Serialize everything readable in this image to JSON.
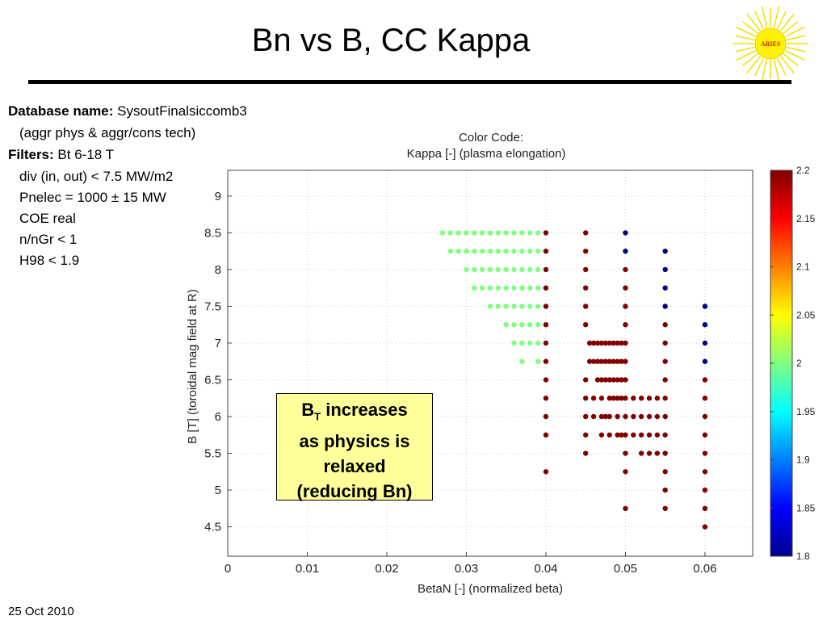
{
  "slide": {
    "title": "Bn vs B, CC Kappa",
    "date": "25 Oct 2010",
    "logo_text": "ARIES"
  },
  "info": {
    "db_label": "Database name:",
    "db_value": "SysoutFinalsiccomb3",
    "db_sub": "(aggr phys & aggr/cons tech)",
    "filters_label": "Filters:",
    "filters_first": "Bt 6-18 T",
    "filters": [
      "div (in, out) < 7.5 MW/m2",
      "Pnelec = 1000 ± 15 MW",
      "COE real",
      "n/nGr < 1",
      "H98 < 1.9"
    ]
  },
  "callout": {
    "line1_main": "B",
    "line1_sub": "T",
    "line1_rest": " increases",
    "line2": "as physics is",
    "line3": "relaxed",
    "line4": "(reducing Bn)"
  },
  "chart_data": {
    "type": "scatter",
    "title_line1": "Color Code:",
    "title_line2": "Kappa [-] (plasma elongation)",
    "xlabel": "BetaN [-] (normalized beta)",
    "ylabel": "B [T] (toroidal mag field at R)",
    "xlim": [
      0,
      0.066
    ],
    "ylim": [
      4.1,
      9.35
    ],
    "xticks": [
      "0",
      "0.01",
      "0.02",
      "0.03",
      "0.04",
      "0.05",
      "0.06"
    ],
    "xtick_values": [
      0,
      0.01,
      0.02,
      0.03,
      0.04,
      0.05,
      0.06
    ],
    "yticks": [
      "4.5",
      "5",
      "5.5",
      "6",
      "6.5",
      "7",
      "7.5",
      "8",
      "8.5",
      "9"
    ],
    "ytick_values": [
      4.5,
      5,
      5.5,
      6,
      6.5,
      7,
      7.5,
      8,
      8.5,
      9
    ],
    "grid": true,
    "colorbar": {
      "range": [
        1.8,
        2.2
      ],
      "ticks": [
        "1.8",
        "1.85",
        "1.9",
        "1.95",
        "2",
        "2.05",
        "2.1",
        "2.15",
        "2.2"
      ],
      "tick_values": [
        1.8,
        1.85,
        1.9,
        1.95,
        2.0,
        2.05,
        2.1,
        2.15,
        2.2
      ],
      "colormap": "jet"
    },
    "groups": [
      {
        "kappa": 2.0,
        "points": [
          [
            0.027,
            8.5
          ],
          [
            0.028,
            8.5
          ],
          [
            0.029,
            8.5
          ],
          [
            0.03,
            8.5
          ],
          [
            0.031,
            8.5
          ],
          [
            0.032,
            8.5
          ],
          [
            0.033,
            8.5
          ],
          [
            0.034,
            8.5
          ],
          [
            0.035,
            8.5
          ],
          [
            0.036,
            8.5
          ],
          [
            0.037,
            8.5
          ],
          [
            0.038,
            8.5
          ],
          [
            0.039,
            8.5
          ],
          [
            0.028,
            8.25
          ],
          [
            0.029,
            8.25
          ],
          [
            0.03,
            8.25
          ],
          [
            0.031,
            8.25
          ],
          [
            0.032,
            8.25
          ],
          [
            0.033,
            8.25
          ],
          [
            0.034,
            8.25
          ],
          [
            0.035,
            8.25
          ],
          [
            0.036,
            8.25
          ],
          [
            0.037,
            8.25
          ],
          [
            0.038,
            8.25
          ],
          [
            0.039,
            8.25
          ],
          [
            0.03,
            8.0
          ],
          [
            0.031,
            8.0
          ],
          [
            0.032,
            8.0
          ],
          [
            0.033,
            8.0
          ],
          [
            0.034,
            8.0
          ],
          [
            0.035,
            8.0
          ],
          [
            0.036,
            8.0
          ],
          [
            0.037,
            8.0
          ],
          [
            0.038,
            8.0
          ],
          [
            0.039,
            8.0
          ],
          [
            0.031,
            7.75
          ],
          [
            0.032,
            7.75
          ],
          [
            0.033,
            7.75
          ],
          [
            0.034,
            7.75
          ],
          [
            0.035,
            7.75
          ],
          [
            0.036,
            7.75
          ],
          [
            0.037,
            7.75
          ],
          [
            0.038,
            7.75
          ],
          [
            0.039,
            7.75
          ],
          [
            0.033,
            7.5
          ],
          [
            0.034,
            7.5
          ],
          [
            0.035,
            7.5
          ],
          [
            0.036,
            7.5
          ],
          [
            0.037,
            7.5
          ],
          [
            0.038,
            7.5
          ],
          [
            0.039,
            7.5
          ],
          [
            0.035,
            7.25
          ],
          [
            0.036,
            7.25
          ],
          [
            0.037,
            7.25
          ],
          [
            0.038,
            7.25
          ],
          [
            0.039,
            7.25
          ],
          [
            0.036,
            7.0
          ],
          [
            0.037,
            7.0
          ],
          [
            0.038,
            7.0
          ],
          [
            0.039,
            7.0
          ],
          [
            0.037,
            6.75
          ],
          [
            0.039,
            6.75
          ]
        ]
      },
      {
        "kappa": 2.2,
        "points": [
          [
            0.04,
            8.5
          ],
          [
            0.04,
            8.25
          ],
          [
            0.04,
            8.0
          ],
          [
            0.04,
            7.75
          ],
          [
            0.04,
            7.5
          ],
          [
            0.04,
            7.25
          ],
          [
            0.04,
            7.0
          ],
          [
            0.04,
            6.75
          ],
          [
            0.04,
            6.5
          ],
          [
            0.04,
            6.25
          ],
          [
            0.04,
            6.0
          ],
          [
            0.04,
            5.75
          ],
          [
            0.04,
            5.25
          ],
          [
            0.045,
            8.5
          ],
          [
            0.045,
            8.25
          ],
          [
            0.045,
            8.0
          ],
          [
            0.045,
            7.75
          ],
          [
            0.045,
            7.5
          ],
          [
            0.045,
            7.25
          ],
          [
            0.045,
            6.5
          ],
          [
            0.045,
            6.25
          ],
          [
            0.045,
            6.0
          ],
          [
            0.045,
            5.75
          ],
          [
            0.045,
            5.5
          ],
          [
            0.05,
            8.0
          ],
          [
            0.05,
            7.75
          ],
          [
            0.05,
            7.5
          ],
          [
            0.05,
            7.25
          ],
          [
            0.05,
            6.5
          ],
          [
            0.05,
            6.25
          ],
          [
            0.05,
            6.0
          ],
          [
            0.05,
            5.75
          ],
          [
            0.05,
            5.5
          ],
          [
            0.05,
            5.25
          ],
          [
            0.05,
            4.75
          ],
          [
            0.055,
            7.25
          ],
          [
            0.055,
            7.0
          ],
          [
            0.055,
            6.75
          ],
          [
            0.055,
            6.5
          ],
          [
            0.055,
            6.25
          ],
          [
            0.055,
            6.0
          ],
          [
            0.055,
            5.75
          ],
          [
            0.055,
            5.5
          ],
          [
            0.055,
            5.25
          ],
          [
            0.055,
            5.0
          ],
          [
            0.055,
            4.75
          ],
          [
            0.06,
            6.5
          ],
          [
            0.06,
            6.25
          ],
          [
            0.06,
            6.0
          ],
          [
            0.06,
            5.75
          ],
          [
            0.06,
            5.5
          ],
          [
            0.06,
            5.25
          ],
          [
            0.06,
            5.0
          ],
          [
            0.06,
            4.75
          ],
          [
            0.06,
            4.5
          ],
          [
            0.0455,
            7.0
          ],
          [
            0.046,
            7.0
          ],
          [
            0.0465,
            7.0
          ],
          [
            0.047,
            7.0
          ],
          [
            0.0475,
            7.0
          ],
          [
            0.048,
            7.0
          ],
          [
            0.0485,
            7.0
          ],
          [
            0.049,
            7.0
          ],
          [
            0.0495,
            7.0
          ],
          [
            0.05,
            7.0
          ],
          [
            0.0455,
            6.75
          ],
          [
            0.046,
            6.75
          ],
          [
            0.0465,
            6.75
          ],
          [
            0.047,
            6.75
          ],
          [
            0.0475,
            6.75
          ],
          [
            0.048,
            6.75
          ],
          [
            0.0485,
            6.75
          ],
          [
            0.049,
            6.75
          ],
          [
            0.0495,
            6.75
          ],
          [
            0.05,
            6.75
          ],
          [
            0.0465,
            6.5
          ],
          [
            0.047,
            6.5
          ],
          [
            0.0475,
            6.5
          ],
          [
            0.048,
            6.5
          ],
          [
            0.0485,
            6.5
          ],
          [
            0.049,
            6.5
          ],
          [
            0.0495,
            6.5
          ],
          [
            0.046,
            6.25
          ],
          [
            0.047,
            6.25
          ],
          [
            0.048,
            6.25
          ],
          [
            0.0485,
            6.25
          ],
          [
            0.049,
            6.25
          ],
          [
            0.0495,
            6.25
          ],
          [
            0.051,
            6.25
          ],
          [
            0.052,
            6.25
          ],
          [
            0.053,
            6.25
          ],
          [
            0.054,
            6.25
          ],
          [
            0.046,
            6.0
          ],
          [
            0.047,
            6.0
          ],
          [
            0.0475,
            6.0
          ],
          [
            0.048,
            6.0
          ],
          [
            0.049,
            6.0
          ],
          [
            0.051,
            6.0
          ],
          [
            0.052,
            6.0
          ],
          [
            0.053,
            6.0
          ],
          [
            0.054,
            6.0
          ],
          [
            0.047,
            5.75
          ],
          [
            0.048,
            5.75
          ],
          [
            0.049,
            5.75
          ],
          [
            0.0495,
            5.75
          ],
          [
            0.051,
            5.75
          ],
          [
            0.052,
            5.75
          ],
          [
            0.053,
            5.75
          ],
          [
            0.054,
            5.75
          ],
          [
            0.052,
            5.5
          ],
          [
            0.053,
            5.5
          ],
          [
            0.054,
            5.5
          ]
        ]
      },
      {
        "kappa": 1.8,
        "points": [
          [
            0.05,
            8.5
          ],
          [
            0.05,
            8.25
          ],
          [
            0.055,
            8.25
          ],
          [
            0.055,
            8.0
          ],
          [
            0.055,
            7.75
          ],
          [
            0.055,
            7.5
          ],
          [
            0.06,
            7.5
          ],
          [
            0.06,
            7.25
          ],
          [
            0.06,
            7.0
          ],
          [
            0.06,
            6.75
          ]
        ]
      }
    ]
  }
}
